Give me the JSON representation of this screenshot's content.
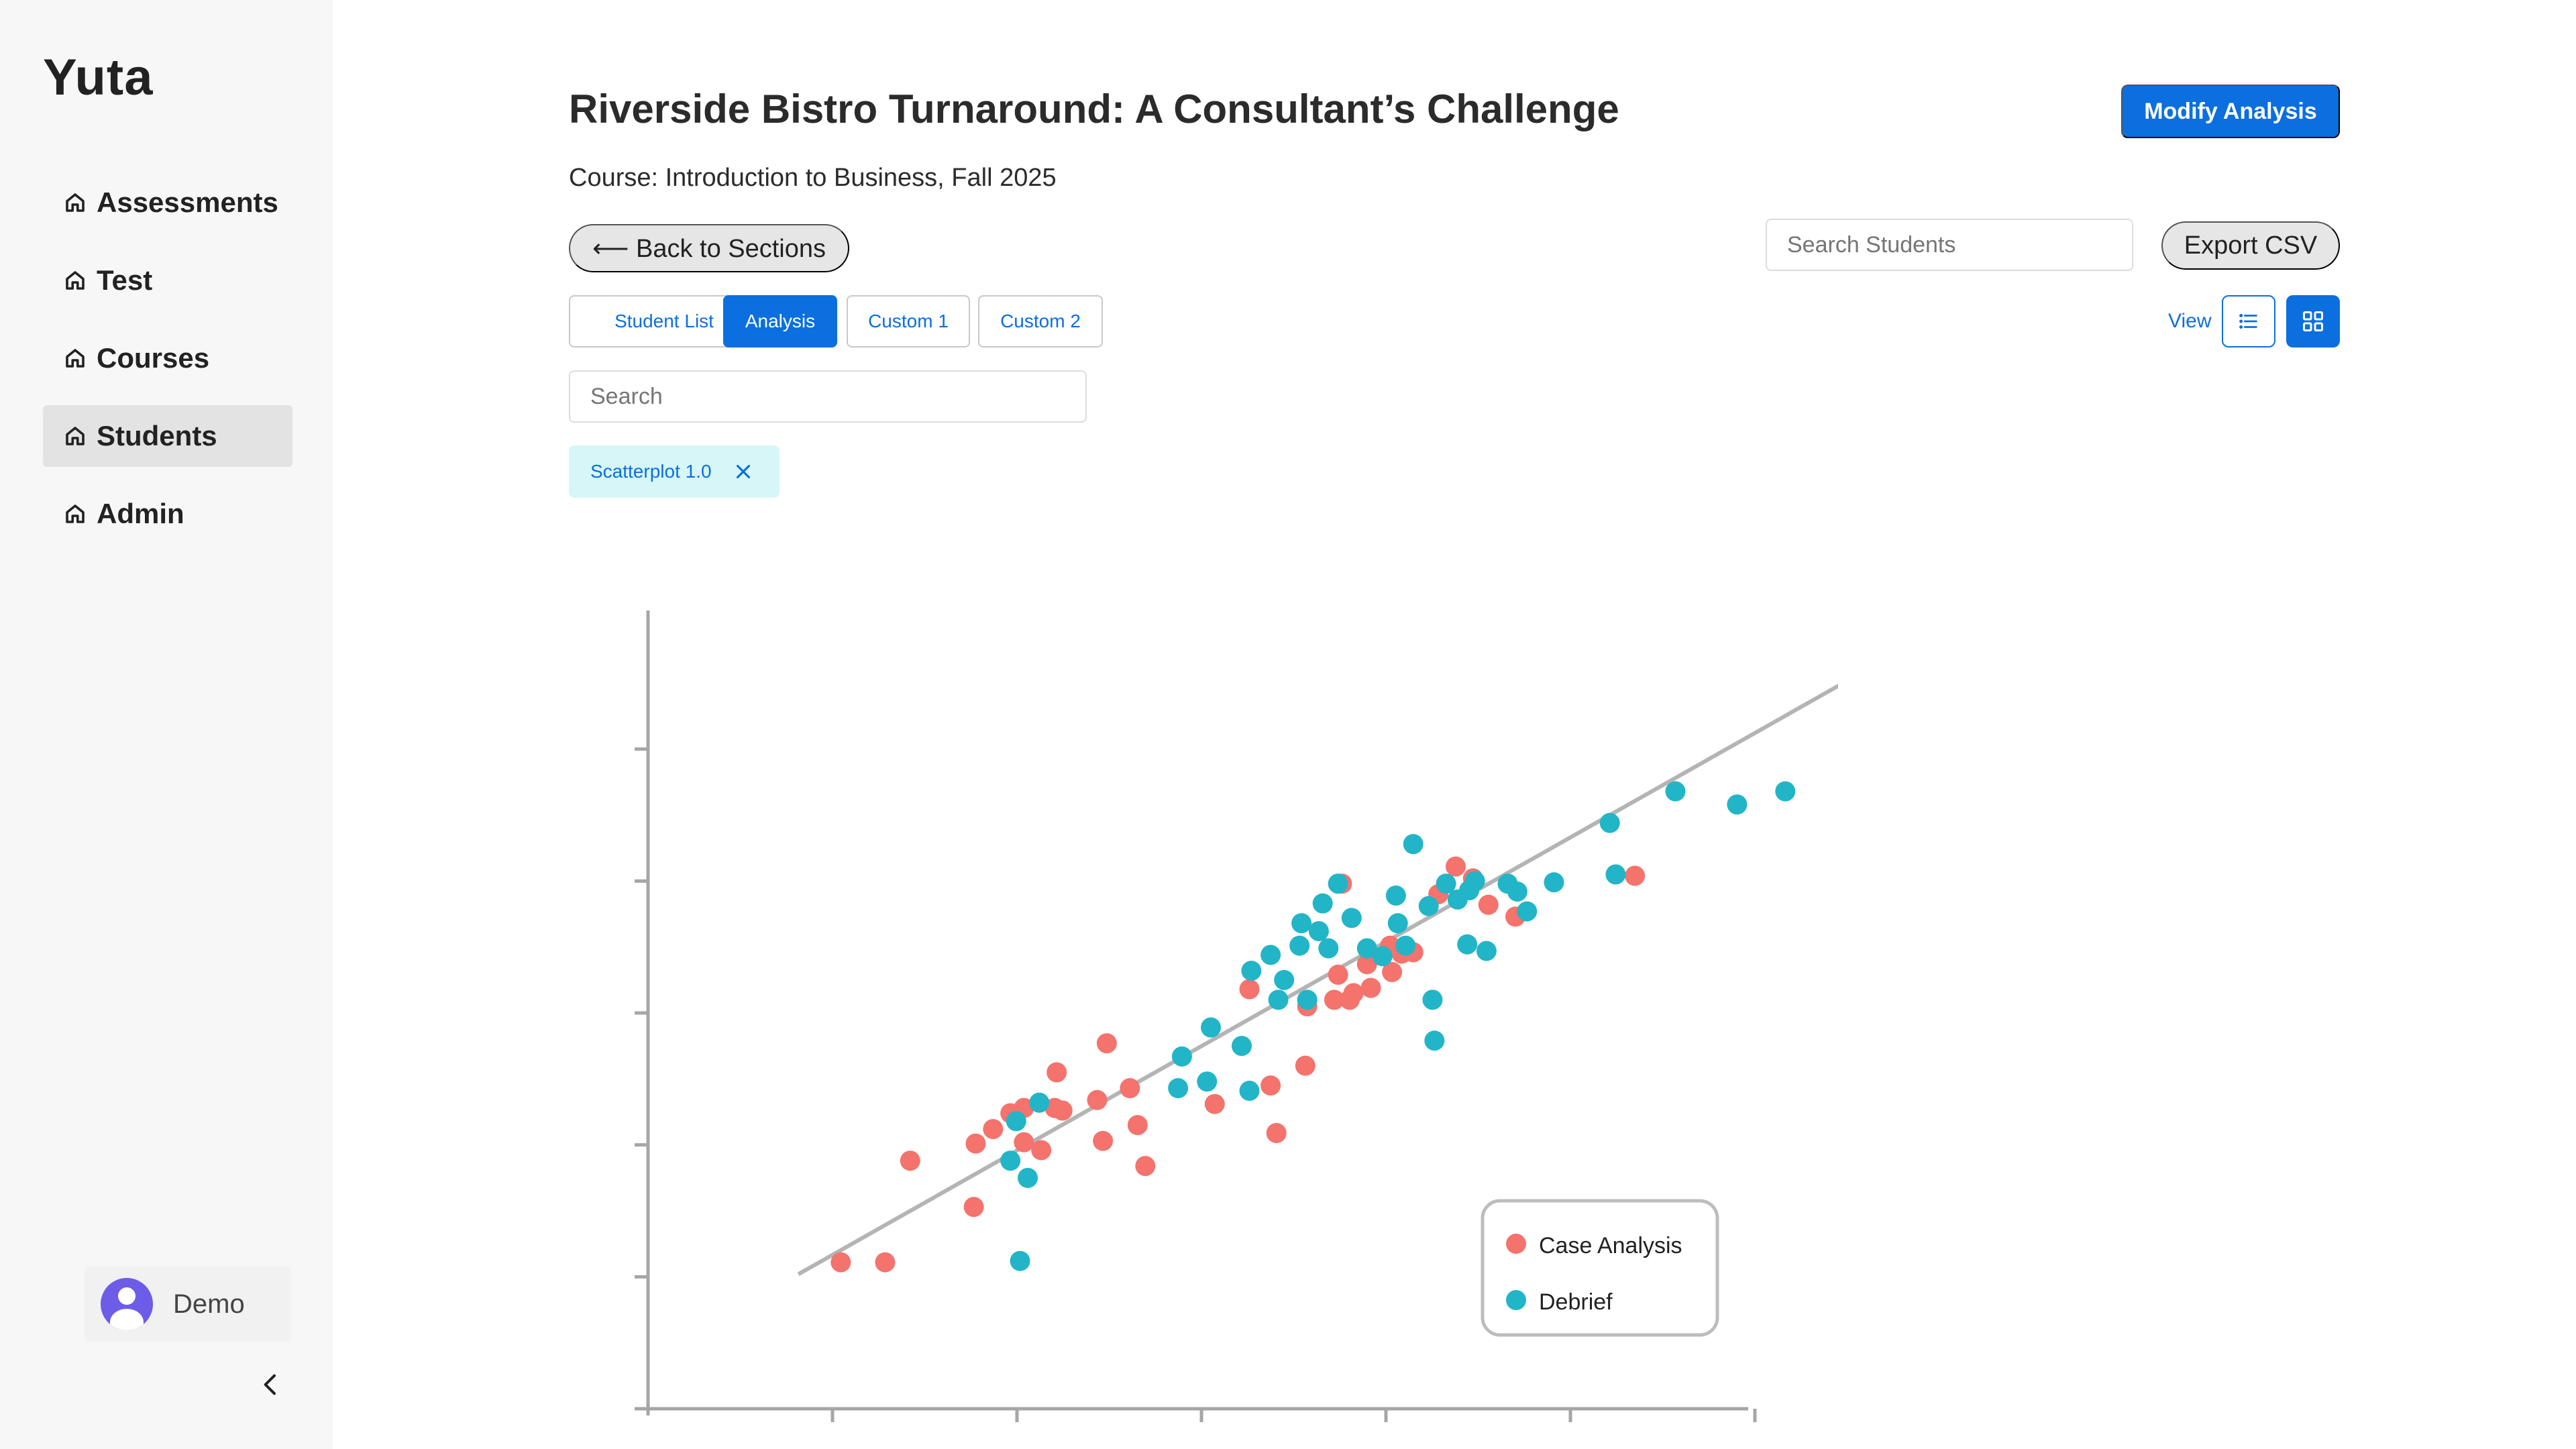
{
  "app": {
    "logo": "Yuta"
  },
  "sidebar": {
    "items": [
      {
        "label": "Assessments",
        "icon": "home-icon"
      },
      {
        "label": "Test",
        "icon": "home-icon"
      },
      {
        "label": "Courses",
        "icon": "home-icon"
      },
      {
        "label": "Students",
        "icon": "home-icon",
        "active": true
      },
      {
        "label": "Admin",
        "icon": "home-icon"
      }
    ],
    "user": {
      "name": "Demo"
    }
  },
  "header": {
    "title": "Riverside Bistro Turnaround: A Consultant’s Challenge",
    "course": "Course: Introduction to Business, Fall 2025",
    "modify_label": "Modify Analysis"
  },
  "toolbar": {
    "back_label": "⟵ Back to Sections",
    "search_students_placeholder": "Search Students",
    "export_label": "Export CSV",
    "view_label": "View"
  },
  "tabs": [
    {
      "label": "Student List"
    },
    {
      "label": "Analysis",
      "active": true
    },
    {
      "label": "Custom 1"
    },
    {
      "label": "Custom 2"
    }
  ],
  "search": {
    "placeholder": "Search"
  },
  "filter_chip": {
    "label": "Scatterplot 1.0"
  },
  "colors": {
    "accent": "#0b6fe0",
    "case_analysis": "#f4736d",
    "debrief": "#22b5c7",
    "trend": "#b4b4b4"
  },
  "chart_data": {
    "type": "scatter",
    "xlim": [
      0,
      6
    ],
    "ylim": [
      0,
      6
    ],
    "legend_position": "bottom-right",
    "grid": false,
    "trend_line": [
      [
        0.78,
        1.02
      ],
      [
        6.2,
        5.5
      ]
    ],
    "series": [
      {
        "name": "Case Analysis",
        "color": "#f4736d",
        "points": [
          [
            1.0,
            1.11
          ],
          [
            1.23,
            1.11
          ],
          [
            1.36,
            1.88
          ],
          [
            1.69,
            1.53
          ],
          [
            1.7,
            2.01
          ],
          [
            1.79,
            2.12
          ],
          [
            1.88,
            2.24
          ],
          [
            1.95,
            2.02
          ],
          [
            1.95,
            2.28
          ],
          [
            2.04,
            1.96
          ],
          [
            2.11,
            2.28
          ],
          [
            2.12,
            2.55
          ],
          [
            2.15,
            2.26
          ],
          [
            2.33,
            2.34
          ],
          [
            2.36,
            2.03
          ],
          [
            2.38,
            2.77
          ],
          [
            2.5,
            2.43
          ],
          [
            2.54,
            2.15
          ],
          [
            2.58,
            1.84
          ],
          [
            2.94,
            2.31
          ],
          [
            3.12,
            3.18
          ],
          [
            3.23,
            2.45
          ],
          [
            3.26,
            2.09
          ],
          [
            3.41,
            2.6
          ],
          [
            3.42,
            3.05
          ],
          [
            3.56,
            3.1
          ],
          [
            3.58,
            3.29
          ],
          [
            3.6,
            3.98
          ],
          [
            3.64,
            3.1
          ],
          [
            3.66,
            3.15
          ],
          [
            3.73,
            3.37
          ],
          [
            3.75,
            3.19
          ],
          [
            3.85,
            3.51
          ],
          [
            3.86,
            3.31
          ],
          [
            3.91,
            3.45
          ],
          [
            3.97,
            3.46
          ],
          [
            4.1,
            3.9
          ],
          [
            4.19,
            4.11
          ],
          [
            4.28,
            4.02
          ],
          [
            4.36,
            3.82
          ],
          [
            4.5,
            3.73
          ],
          [
            5.12,
            4.04
          ]
        ]
      },
      {
        "name": "Debrief",
        "color": "#22b5c7",
        "points": [
          [
            1.93,
            1.12
          ],
          [
            1.88,
            1.88
          ],
          [
            1.91,
            2.18
          ],
          [
            1.97,
            1.75
          ],
          [
            2.03,
            2.32
          ],
          [
            2.75,
            2.43
          ],
          [
            2.77,
            2.67
          ],
          [
            2.9,
            2.48
          ],
          [
            2.92,
            2.89
          ],
          [
            3.08,
            2.75
          ],
          [
            3.12,
            2.41
          ],
          [
            3.13,
            3.32
          ],
          [
            3.23,
            3.44
          ],
          [
            3.27,
            3.1
          ],
          [
            3.3,
            3.25
          ],
          [
            3.38,
            3.51
          ],
          [
            3.39,
            3.68
          ],
          [
            3.42,
            3.1
          ],
          [
            3.48,
            3.62
          ],
          [
            3.5,
            3.83
          ],
          [
            3.53,
            3.49
          ],
          [
            3.58,
            3.98
          ],
          [
            3.65,
            3.72
          ],
          [
            3.73,
            3.49
          ],
          [
            3.81,
            3.43
          ],
          [
            3.88,
            3.89
          ],
          [
            3.89,
            3.68
          ],
          [
            3.93,
            3.51
          ],
          [
            3.97,
            4.28
          ],
          [
            4.05,
            3.81
          ],
          [
            4.07,
            3.1
          ],
          [
            4.08,
            2.79
          ],
          [
            4.14,
            3.98
          ],
          [
            4.2,
            3.86
          ],
          [
            4.25,
            3.52
          ],
          [
            4.26,
            3.93
          ],
          [
            4.29,
            4.0
          ],
          [
            4.35,
            3.47
          ],
          [
            4.46,
            3.98
          ],
          [
            4.51,
            3.92
          ],
          [
            4.56,
            3.77
          ],
          [
            4.7,
            3.99
          ],
          [
            4.99,
            4.44
          ],
          [
            5.02,
            4.05
          ],
          [
            5.33,
            4.68
          ],
          [
            5.65,
            4.58
          ],
          [
            5.9,
            4.68
          ]
        ]
      }
    ]
  }
}
